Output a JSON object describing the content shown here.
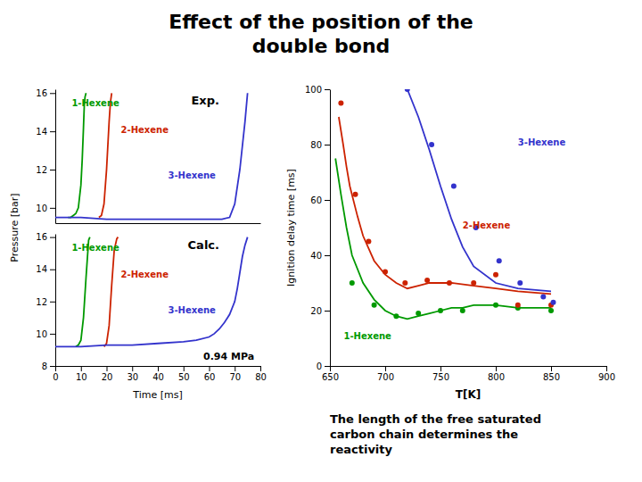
{
  "title": "Effect of the position of the\ndouble bond",
  "annotations": [
    "The length of the free saturated\ncarbon chain determines the\nreactivity"
  ],
  "chart_data": [
    {
      "type": "line",
      "ylabel": "Pressure [bar]",
      "annotations": [
        "Exp."
      ],
      "xlim": [
        0,
        80
      ],
      "ylim": [
        9.2,
        16.2
      ],
      "yticks": [
        10,
        12,
        14,
        16
      ],
      "tick_labels": "y",
      "series": [
        {
          "name": "1-Hexene",
          "color": "#009900",
          "x": [
            5,
            6,
            7,
            8,
            9,
            10,
            10.5,
            11,
            11.3,
            11.6,
            12
          ],
          "values": [
            9.5,
            9.5,
            9.6,
            9.7,
            10.0,
            11.2,
            12.5,
            14.2,
            15.3,
            15.8,
            16.0
          ]
        },
        {
          "name": "2-Hexene",
          "color": "#cc2200",
          "x": [
            17,
            18,
            19,
            20,
            21,
            21.5,
            22
          ],
          "values": [
            9.5,
            9.6,
            10.2,
            12.0,
            14.5,
            15.5,
            16.0
          ]
        },
        {
          "name": "3-Hexene",
          "color": "#3333cc",
          "x": [
            0,
            10,
            20,
            30,
            40,
            50,
            60,
            65,
            68,
            70,
            72,
            74,
            75
          ],
          "values": [
            9.5,
            9.5,
            9.4,
            9.4,
            9.4,
            9.4,
            9.4,
            9.4,
            9.5,
            10.2,
            12.0,
            14.5,
            16.0
          ]
        }
      ]
    },
    {
      "type": "line",
      "xlabel": "Time [ms]",
      "annotations": [
        "Calc.",
        "0.94 MPa"
      ],
      "xlim": [
        0,
        80
      ],
      "ylim": [
        8.0,
        16.2
      ],
      "xticks": [
        0,
        10,
        20,
        30,
        40,
        50,
        60,
        70,
        80
      ],
      "yticks": [
        8,
        10,
        12,
        14,
        16
      ],
      "series": [
        {
          "name": "1-Hexene",
          "color": "#009900",
          "x": [
            8,
            9,
            10,
            11,
            12,
            13,
            13.5
          ],
          "values": [
            9.2,
            9.3,
            9.6,
            11.0,
            13.5,
            15.8,
            16.0
          ]
        },
        {
          "name": "2-Hexene",
          "color": "#cc2200",
          "x": [
            19,
            20,
            21,
            22,
            23,
            24,
            24.5
          ],
          "values": [
            9.2,
            9.4,
            10.5,
            13.0,
            15.2,
            15.9,
            16.0
          ]
        },
        {
          "name": "3-Hexene",
          "color": "#3333cc",
          "x": [
            0,
            10,
            20,
            30,
            40,
            50,
            55,
            60,
            62,
            64,
            66,
            68,
            70,
            71,
            72,
            73,
            74,
            75
          ],
          "values": [
            9.2,
            9.2,
            9.3,
            9.3,
            9.4,
            9.5,
            9.6,
            9.8,
            10.0,
            10.3,
            10.7,
            11.2,
            12.0,
            12.8,
            13.8,
            14.8,
            15.5,
            16.0
          ]
        }
      ]
    },
    {
      "type": "line",
      "xlabel": "T[K]",
      "ylabel": "Ignition delay time [ms]",
      "xlim": [
        650,
        900
      ],
      "ylim": [
        0,
        100
      ],
      "xticks": [
        650,
        700,
        750,
        800,
        850,
        900
      ],
      "yticks": [
        0,
        20,
        40,
        60,
        80,
        100
      ],
      "series": [
        {
          "type": "line",
          "name": "1-Hexene",
          "color": "#009900",
          "x": [
            655,
            660,
            665,
            670,
            680,
            690,
            700,
            710,
            720,
            730,
            740,
            750,
            760,
            770,
            780,
            800,
            820,
            850
          ],
          "values": [
            75,
            62,
            50,
            40,
            30,
            24,
            20,
            18,
            17,
            18,
            19,
            20,
            21,
            21,
            22,
            22,
            21,
            21
          ]
        },
        {
          "type": "scatter",
          "color": "#009900",
          "x": [
            670,
            690,
            710,
            730,
            750,
            770,
            800,
            820,
            850
          ],
          "values": [
            30,
            22,
            18,
            19,
            20,
            20,
            22,
            21,
            20
          ]
        },
        {
          "type": "line",
          "name": "2-Hexene",
          "color": "#cc2200",
          "x": [
            658,
            662,
            665,
            668,
            675,
            680,
            690,
            700,
            710,
            720,
            730,
            740,
            750,
            760,
            780,
            800,
            820,
            850
          ],
          "values": [
            90,
            80,
            72,
            65,
            54,
            47,
            38,
            33,
            30,
            28,
            29,
            30,
            30,
            30,
            29,
            28,
            27,
            26
          ]
        },
        {
          "type": "scatter",
          "color": "#cc2200",
          "x": [
            660,
            673,
            685,
            700,
            718,
            738,
            758,
            780,
            800,
            820,
            850
          ],
          "values": [
            95,
            62,
            45,
            34,
            30,
            31,
            30,
            30,
            33,
            22,
            22
          ]
        },
        {
          "type": "line",
          "name": "3-Hexene",
          "color": "#3333cc",
          "x": [
            720,
            730,
            740,
            750,
            760,
            770,
            780,
            800,
            820,
            850
          ],
          "values": [
            100,
            90,
            78,
            65,
            53,
            43,
            36,
            30,
            28,
            27
          ]
        },
        {
          "type": "scatter",
          "color": "#3333cc",
          "x": [
            720,
            742,
            762,
            782,
            803,
            822,
            843,
            852
          ],
          "values": [
            100,
            80,
            65,
            50,
            38,
            30,
            25,
            23
          ]
        }
      ]
    }
  ]
}
